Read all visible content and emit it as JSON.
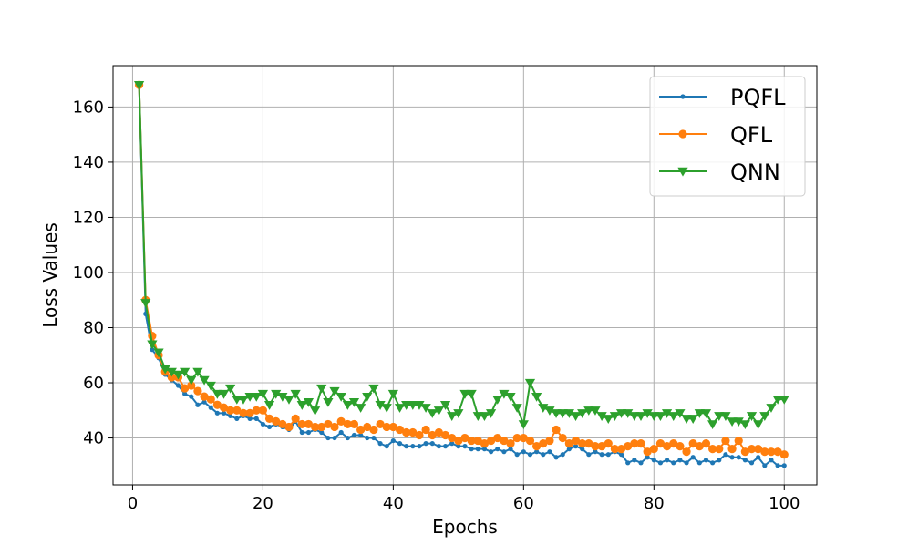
{
  "chart_data": {
    "type": "line",
    "title": "",
    "xlabel": "Epochs",
    "ylabel": "Loss Values",
    "xlim": [
      -3,
      105
    ],
    "ylim": [
      23,
      175
    ],
    "xticks": [
      0,
      20,
      40,
      60,
      80,
      100
    ],
    "yticks": [
      40,
      60,
      80,
      100,
      120,
      140,
      160
    ],
    "grid": true,
    "legend_position": "top-right",
    "series": [
      {
        "name": "PQFL",
        "color": "#1f77b4",
        "marker": "point",
        "values": [
          168,
          85,
          72,
          69,
          63,
          61,
          59,
          56,
          55,
          52,
          53,
          51,
          49,
          49,
          48,
          47,
          48,
          47,
          47,
          45,
          44,
          45,
          44,
          43,
          46,
          42,
          42,
          43,
          42,
          40,
          40,
          42,
          40,
          41,
          41,
          40,
          40,
          38,
          37,
          39,
          38,
          37,
          37,
          37,
          38,
          38,
          37,
          37,
          38,
          37,
          37,
          36,
          36,
          36,
          35,
          36,
          35,
          36,
          34,
          35,
          34,
          35,
          34,
          35,
          33,
          34,
          36,
          37,
          36,
          34,
          35,
          34,
          34,
          35,
          34,
          31,
          32,
          31,
          33,
          32,
          31,
          32,
          31,
          32,
          31,
          33,
          31,
          32,
          31,
          32,
          34,
          33,
          33,
          32,
          31,
          33,
          30,
          32,
          30,
          30
        ]
      },
      {
        "name": "QFL",
        "color": "#ff7f0e",
        "marker": "circle",
        "values": [
          168,
          90,
          77,
          70,
          64,
          62,
          62,
          58,
          59,
          57,
          55,
          54,
          52,
          51,
          50,
          50,
          49,
          49,
          50,
          50,
          47,
          46,
          45,
          44,
          47,
          45,
          45,
          44,
          44,
          45,
          44,
          46,
          45,
          45,
          43,
          44,
          43,
          45,
          44,
          44,
          43,
          42,
          42,
          41,
          43,
          41,
          42,
          41,
          40,
          39,
          40,
          39,
          39,
          38,
          39,
          40,
          39,
          38,
          40,
          40,
          39,
          37,
          38,
          39,
          43,
          40,
          38,
          39,
          38,
          38,
          37,
          37,
          38,
          36,
          36,
          37,
          38,
          38,
          35,
          36,
          38,
          37,
          38,
          37,
          35,
          38,
          37,
          38,
          36,
          36,
          39,
          36,
          39,
          35,
          36,
          36,
          35,
          35,
          35,
          34
        ]
      },
      {
        "name": "QNN",
        "color": "#2ca02c",
        "marker": "triangle-down",
        "values": [
          168,
          89,
          74,
          71,
          65,
          64,
          63,
          64,
          61,
          64,
          61,
          59,
          56,
          56,
          58,
          54,
          54,
          55,
          55,
          56,
          52,
          56,
          55,
          54,
          56,
          52,
          53,
          50,
          58,
          53,
          57,
          55,
          52,
          53,
          51,
          55,
          58,
          52,
          51,
          56,
          51,
          52,
          52,
          52,
          51,
          49,
          50,
          52,
          48,
          49,
          56,
          56,
          48,
          48,
          49,
          54,
          56,
          55,
          51,
          45,
          60,
          55,
          51,
          50,
          49,
          49,
          49,
          48,
          49,
          50,
          50,
          48,
          47,
          48,
          49,
          49,
          48,
          48,
          49,
          48,
          48,
          49,
          48,
          49,
          47,
          47,
          49,
          49,
          45,
          48,
          48,
          46,
          46,
          45,
          48,
          45,
          48,
          51,
          54,
          54
        ]
      }
    ]
  }
}
